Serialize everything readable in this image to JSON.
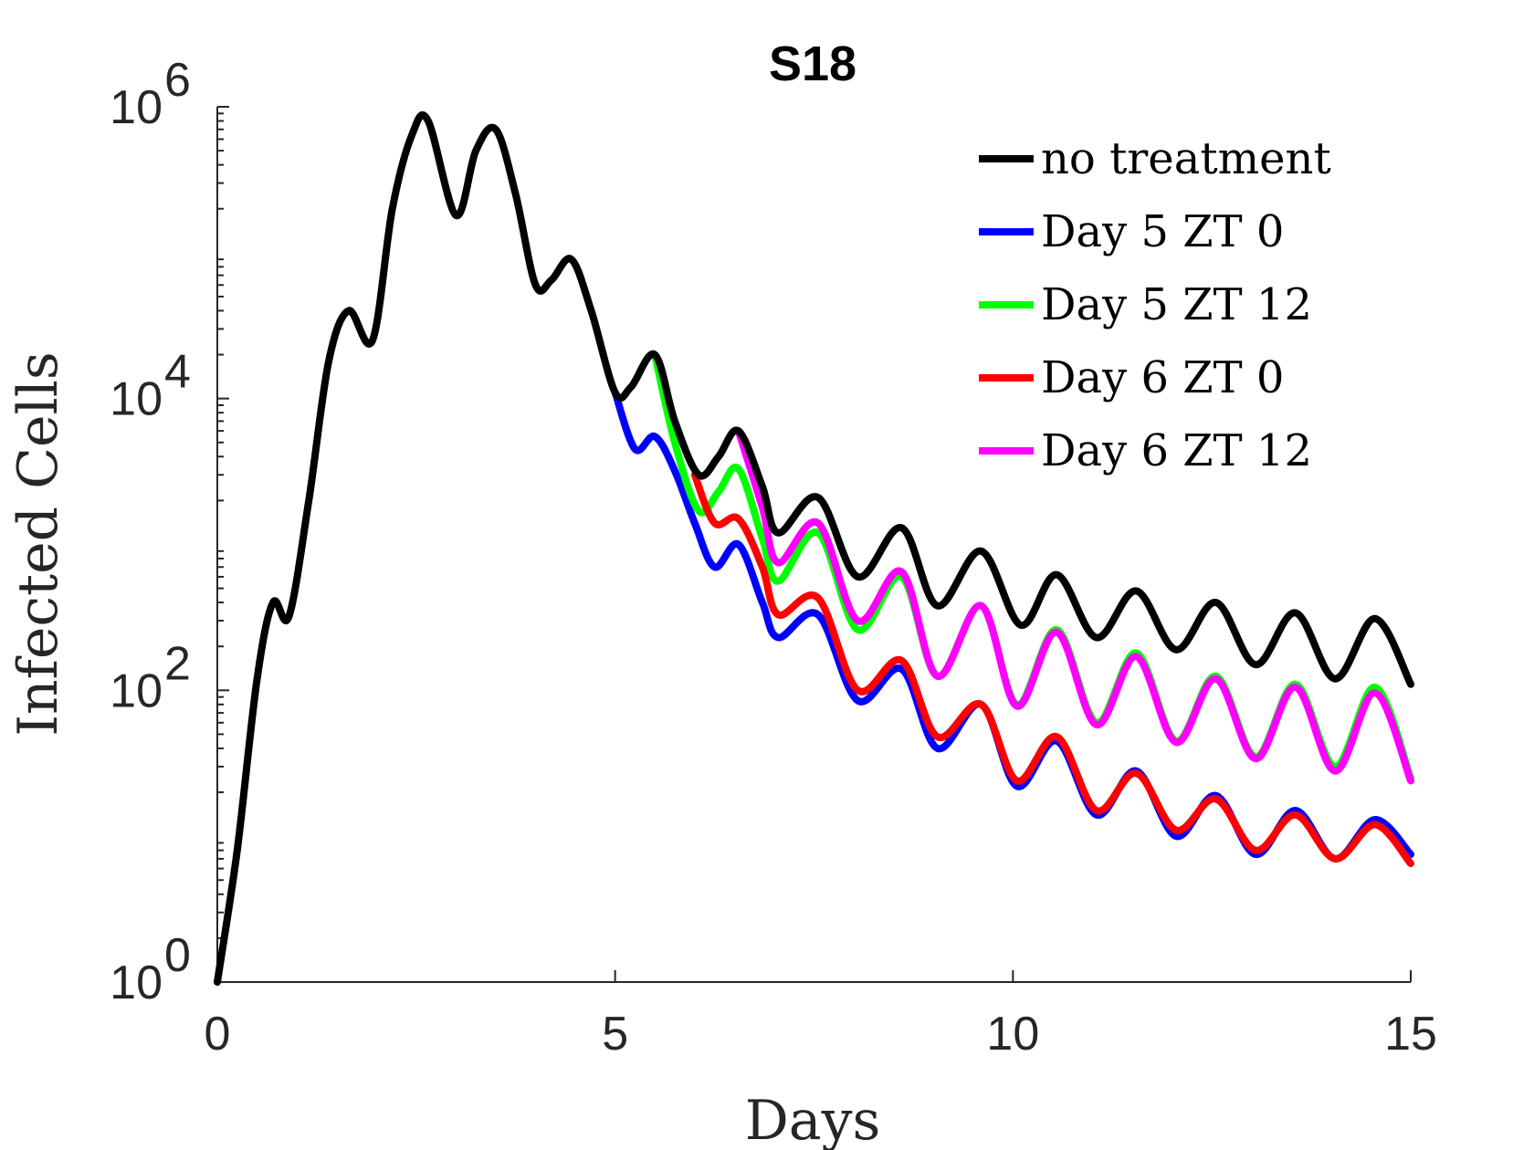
{
  "chart_data": {
    "type": "line",
    "title": "S18",
    "xlabel": "Days",
    "ylabel": "Infected Cells",
    "xlim": [
      0,
      15
    ],
    "ylim": [
      1,
      1000000
    ],
    "yscale": "log",
    "xticks": [
      0,
      5,
      10,
      15
    ],
    "xtick_labels": [
      "0",
      "5",
      "10",
      "15"
    ],
    "yticks": [
      1,
      100,
      10000,
      1000000
    ],
    "ytick_labels": [
      {
        "base": "10",
        "exp": "0"
      },
      {
        "base": "10",
        "exp": "2"
      },
      {
        "base": "10",
        "exp": "4"
      },
      {
        "base": "10",
        "exp": "6"
      }
    ],
    "grid": false,
    "legend_position": "top-right",
    "series": [
      {
        "name": "no treatment",
        "color": "#000000",
        "x": [
          0,
          0.25,
          0.5,
          0.7,
          0.9,
          1.15,
          1.4,
          1.65,
          1.95,
          2.2,
          2.45,
          2.65,
          3.0,
          3.25,
          3.5,
          3.75,
          4.0,
          4.2,
          4.45,
          4.7,
          5.0,
          5.2,
          5.5,
          5.75,
          6.05,
          6.3,
          6.55,
          6.85,
          7.05,
          7.55,
          8.05,
          8.6,
          9.05,
          9.6,
          10.1,
          10.55,
          11.05,
          11.55,
          12.05,
          12.55,
          13.05,
          13.55,
          14.05,
          14.55,
          15.0
        ],
        "y": [
          1,
          8,
          120,
          400,
          320,
          2000,
          18000,
          40000,
          25000,
          200000,
          650000,
          800000,
          180000,
          500000,
          700000,
          250000,
          60000,
          65000,
          90000,
          40000,
          11000,
          12000,
          20000,
          7000,
          3000,
          4000,
          6000,
          2500,
          1200,
          2100,
          600,
          1300,
          380,
          900,
          280,
          620,
          230,
          480,
          190,
          400,
          150,
          340,
          120,
          310,
          110
        ]
      },
      {
        "name": "Day 5 ZT 0",
        "color": "#0000ff",
        "x": [
          5.0,
          5.25,
          5.5,
          5.75,
          6.0,
          6.25,
          6.55,
          6.85,
          7.05,
          7.55,
          8.05,
          8.6,
          9.05,
          9.6,
          10.05,
          10.55,
          11.05,
          11.55,
          12.05,
          12.55,
          13.05,
          13.55,
          14.05,
          14.55,
          15.0
        ],
        "y": [
          11000,
          4500,
          5500,
          3200,
          1400,
          700,
          1000,
          400,
          230,
          330,
          85,
          140,
          40,
          80,
          22,
          45,
          14,
          28,
          10,
          19,
          7.5,
          15,
          7,
          13,
          7.5
        ]
      },
      {
        "name": "Day 5 ZT 12",
        "color": "#00ff00",
        "x": [
          5.5,
          5.75,
          6.05,
          6.3,
          6.55,
          6.85,
          7.05,
          7.55,
          8.05,
          8.6,
          9.05,
          9.6,
          10.05,
          10.55,
          11.05,
          11.55,
          12.05,
          12.55,
          13.05,
          13.55,
          14.05,
          14.55,
          15.0
        ],
        "y": [
          20000,
          5000,
          1700,
          2300,
          3300,
          1100,
          560,
          1200,
          260,
          600,
          125,
          380,
          80,
          260,
          60,
          180,
          45,
          125,
          35,
          110,
          30,
          105,
          25
        ]
      },
      {
        "name": "Day 6 ZT 0",
        "color": "#ff0000",
        "x": [
          6.0,
          6.25,
          6.55,
          6.85,
          7.05,
          7.55,
          8.05,
          8.6,
          9.05,
          9.6,
          10.05,
          10.55,
          11.05,
          11.55,
          12.05,
          12.55,
          13.05,
          13.55,
          14.05,
          14.55,
          15.0
        ],
        "y": [
          3000,
          1400,
          1500,
          700,
          330,
          430,
          100,
          160,
          48,
          80,
          24,
          48,
          15,
          27,
          11,
          18,
          8,
          14,
          7,
          12,
          6.5
        ]
      },
      {
        "name": "Day 6 ZT 12",
        "color": "#ff00ff",
        "x": [
          6.55,
          6.85,
          7.05,
          7.55,
          8.05,
          8.6,
          9.05,
          9.6,
          10.05,
          10.55,
          11.05,
          11.55,
          12.05,
          12.55,
          13.05,
          13.55,
          14.05,
          14.55,
          15.0
        ],
        "y": [
          6000,
          1800,
          750,
          1400,
          300,
          650,
          125,
          380,
          78,
          250,
          58,
          170,
          44,
          120,
          34,
          105,
          28,
          96,
          24
        ]
      }
    ]
  }
}
